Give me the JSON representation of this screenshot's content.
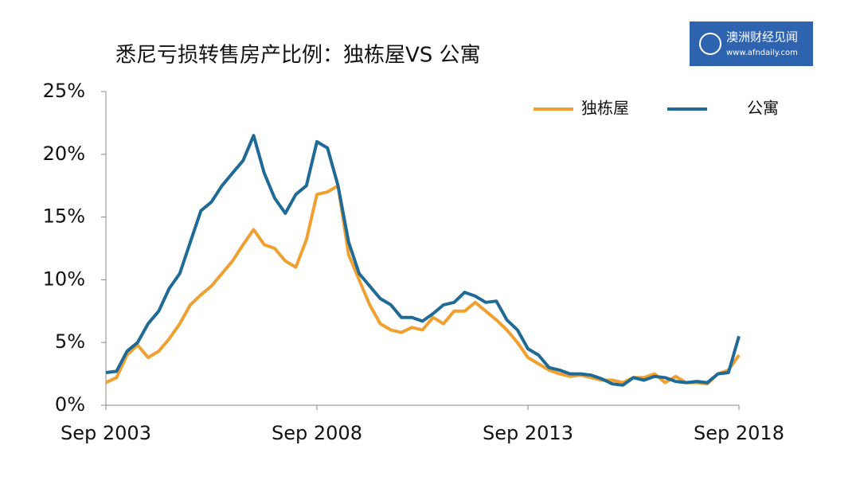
{
  "logo": {
    "name": "澳洲财经见闻",
    "url": "www.afndaily.com"
  },
  "chart_data": {
    "type": "line",
    "title": "悉尼亏损转售房产比例：独栋屋VS 公寓",
    "categories": [
      "Sep 2003",
      null,
      null,
      null,
      null,
      null,
      null,
      null,
      null,
      null,
      null,
      null,
      null,
      null,
      null,
      null,
      null,
      null,
      null,
      null,
      "Sep 2008",
      null,
      null,
      null,
      null,
      null,
      null,
      null,
      null,
      null,
      null,
      null,
      null,
      null,
      null,
      null,
      null,
      null,
      null,
      null,
      "Sep 2013",
      null,
      null,
      null,
      null,
      null,
      null,
      null,
      null,
      null,
      null,
      null,
      null,
      null,
      null,
      null,
      null,
      null,
      null,
      null,
      "Sep 2018"
    ],
    "series": [
      {
        "name": "独栋屋",
        "color": "#f0a030",
        "values": [
          1.8,
          2.2,
          4.0,
          4.8,
          3.8,
          4.3,
          5.3,
          6.5,
          8.0,
          8.8,
          9.5,
          10.5,
          11.5,
          12.8,
          14.0,
          12.8,
          12.5,
          11.5,
          11.0,
          13.2,
          16.8,
          17.0,
          17.5,
          12.0,
          10.0,
          8.0,
          6.5,
          6.0,
          5.8,
          6.2,
          6.0,
          7.0,
          6.5,
          7.5,
          7.5,
          8.2,
          7.5,
          6.8,
          6.0,
          5.0,
          3.8,
          3.3,
          2.8,
          2.5,
          2.3,
          2.4,
          2.2,
          2.0,
          2.0,
          1.8,
          2.2,
          2.2,
          2.5,
          1.8,
          2.3,
          1.8,
          1.8,
          1.7,
          2.5,
          2.8,
          4.0
        ]
      },
      {
        "name": "公寓",
        "color": "#1f6a96",
        "values": [
          2.6,
          2.7,
          4.3,
          5.0,
          6.5,
          7.5,
          9.3,
          10.5,
          13.0,
          15.5,
          16.2,
          17.5,
          18.5,
          19.5,
          21.5,
          18.5,
          16.5,
          15.3,
          16.8,
          17.5,
          21.0,
          20.5,
          17.5,
          13.0,
          10.5,
          9.5,
          8.5,
          8.0,
          7.0,
          7.0,
          6.7,
          7.3,
          8.0,
          8.2,
          9.0,
          8.7,
          8.2,
          8.3,
          6.8,
          6.0,
          4.5,
          4.0,
          3.0,
          2.8,
          2.5,
          2.5,
          2.4,
          2.1,
          1.7,
          1.6,
          2.2,
          2.0,
          2.3,
          2.2,
          1.9,
          1.8,
          1.9,
          1.8,
          2.5,
          2.6,
          5.5
        ]
      }
    ],
    "ylim": [
      0,
      25
    ],
    "yticks": [
      {
        "value": 0,
        "label": "0%"
      },
      {
        "value": 5,
        "label": "5%"
      },
      {
        "value": 10,
        "label": "10%"
      },
      {
        "value": 15,
        "label": "15%"
      },
      {
        "value": 20,
        "label": "20%"
      },
      {
        "value": 25,
        "label": "25%"
      }
    ],
    "grid": false,
    "legend": "top-right"
  }
}
